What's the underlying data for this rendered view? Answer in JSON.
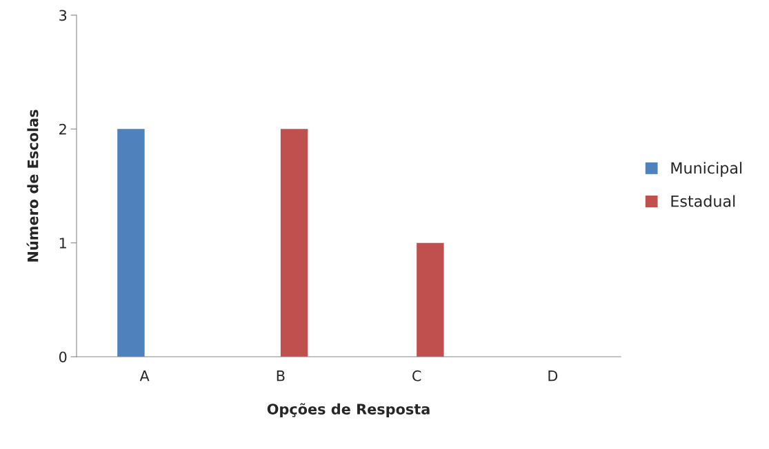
{
  "chart_data": {
    "type": "bar",
    "xlabel": "Opções de Resposta",
    "ylabel": "Número de Escolas",
    "categories": [
      "A",
      "B",
      "C",
      "D"
    ],
    "series": [
      {
        "name": "Municipal",
        "color": "#4f81bd",
        "values": [
          2,
          0,
          0,
          0
        ]
      },
      {
        "name": "Estadual",
        "color": "#c0504d",
        "values": [
          0,
          2,
          1,
          0
        ]
      }
    ],
    "ylim": [
      0,
      3
    ],
    "yticks": [
      0,
      1,
      2,
      3
    ],
    "grid": false,
    "legend": "right"
  }
}
